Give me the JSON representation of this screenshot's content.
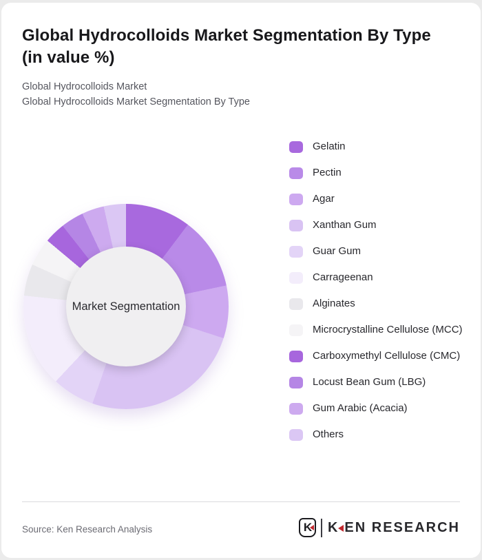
{
  "page": {
    "background": "#ebebeb",
    "card_background": "#ffffff"
  },
  "header": {
    "title": "Global Hydrocolloids Market Segmentation By Type (in value %)",
    "subtitles": [
      "Global Hydrocolloids Market",
      "Global Hydrocolloids Market Segmentation By Type"
    ]
  },
  "chart_data": {
    "type": "pie",
    "donut": true,
    "title": "Global Hydrocolloids Market Segmentation By Type (in value %)",
    "center_label": "Market Segmentation",
    "legend_position": "right",
    "start_angle_deg": 0,
    "categories": [
      "Gelatin",
      "Pectin",
      "Agar",
      "Xanthan Gum",
      "Guar Gum",
      "Carrageenan",
      "Alginates",
      "Microcrystalline Cellulose (MCC)",
      "Carboxymethyl Cellulose (CMC)",
      "Locust Bean Gum (LBG)",
      "Gum Arabic (Acacia)",
      "Others"
    ],
    "values": [
      10.3,
      11.4,
      8.3,
      25.3,
      6.7,
      14.7,
      5.0,
      4.4,
      3.3,
      3.6,
      3.5,
      3.5
    ],
    "colors": [
      "#a869de",
      "#b98ae8",
      "#cda9f0",
      "#d9c3f3",
      "#e3d4f7",
      "#f3edfb",
      "#e9e8ec",
      "#f5f4f6",
      "#a766dd",
      "#b586e5",
      "#cdaaef",
      "#dbc7f4"
    ],
    "center_fill": "#f0eff1"
  },
  "footer": {
    "source": "Source: Ken Research Analysis",
    "logo": {
      "badge_letter": "K",
      "brand_first_letter": "K",
      "brand_rest": "EN RESEARCH",
      "accent_color": "#c1272d"
    }
  }
}
